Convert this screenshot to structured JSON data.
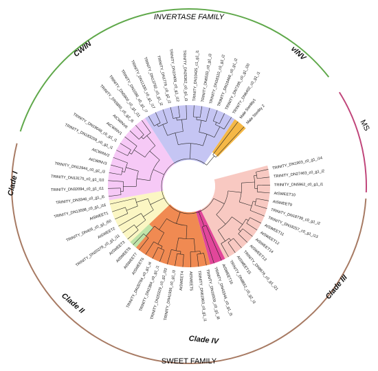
{
  "figure": {
    "families": [
      {
        "label": "INVERTASE FAMILY",
        "color": "#3a8f3a"
      },
      {
        "label": "MS",
        "color": "#c0457a"
      },
      {
        "label": "SWEET FAMILY",
        "color": "#b4433a"
      }
    ],
    "arc_colors": {
      "invertase": "#5fa84a",
      "ms": "#c0457a",
      "sweet": "#a77a63"
    },
    "clades": [
      "CWIN",
      "vINV",
      "Clade I",
      "Clade II",
      "Clade III",
      "Clade IV"
    ],
    "sector_colors": {
      "cwin": "#f6c9f6",
      "vinv": "#c5c5f3",
      "ms": "#f5b846",
      "clade_i": "#fbf6c3",
      "clade_ii": "#f08a52",
      "clade_iii": "#f8c9c2",
      "clade_iv": "#e2479a",
      "green": "#bfe3a8"
    },
    "leaves": [
      "TRINITY_DN1903_c0_g1_i14",
      "TRINITY_DN27463_c0_g1_i2",
      "TRINITY_DN5962_c0_g1_i1",
      "AtSWEET10",
      "AtSWEET9",
      "TRINITY_DN18739_c0_g1_i2",
      "TRINITY_DN18257_c0_g1_i13",
      "AtSWEET11",
      "AtSWEET12",
      "AtSWEET14",
      "AtSWEET13",
      "TRINITY_DN9676_c0_g1_i21",
      "AtSWEET15",
      "TRINITY_DN8652_c0_g2_i3",
      "AtSWEET16",
      "TRINITY_DN43346_c0_g1_i5",
      "TRINITY_DN16509_c0_g1_i8",
      "TRINITY_DN61963_c0_g1_i1",
      "AtSWEET5",
      "AtSWEET4",
      "TRINITY_DN41936_c0_g1_i3",
      "TRINITY_DN20329_c0_g1_i33",
      "TRINITY_DN2384_c0_g1_i1",
      "TRINITY_DN20784_c0_g1_i4",
      "AtSWEET6",
      "AtSWEET7",
      "AtSWEET8",
      "AtSWEET3",
      "TRINITY_DN20279_c0_g1_i11",
      "AtSWEET2",
      "TRINITY_DN405_c0_g1_i50",
      "AtSWEET1",
      "TRINITY_DN13598_c0_g1_i16",
      "TRINITY_DN3346_c0_g1_i5",
      "TRINITY_DN32094_c0_g1_i11",
      "TRINITY_DN13175_c0_g1_i10",
      "TRINITY_DN12944_c0_g1_i3",
      "AtCWINV3",
      "AtCWINV2",
      "TRINITY_DN183209_c0_g1_i1",
      "TRINITY_DN19048_c0_g1_i1",
      "AtCWINV1",
      "AtCWINV6",
      "TRINITY_DN3850_c0_g2_i5",
      "TRINITY_DN5900_c0_g1_i11",
      "TRINITY_DN1090_c0_g1_i7",
      "TRINITY_DN11330_c0_g1_i17",
      "TRINITY_DN13782_c0_g1_i2",
      "TRINITY_DN1779_c0_g2_i2",
      "TRINITY_DN10409_c0_g1_i12",
      "TRINITY_DN26362_c0_g1_i3",
      "TRINITY_DN10425_c1_g1_i1",
      "TRINITY_DN6533_c0_g1_i3",
      "TRINITY_DN18110_c0_g1_i2",
      "TRINITY_DN10460_c0_g1_i2",
      "TRINITY_DN7295_c0_g1_i20",
      "TRINITY_DN6402_c0_g1_i1",
      "Male Sterility1",
      "Male Sterility 2"
    ]
  }
}
